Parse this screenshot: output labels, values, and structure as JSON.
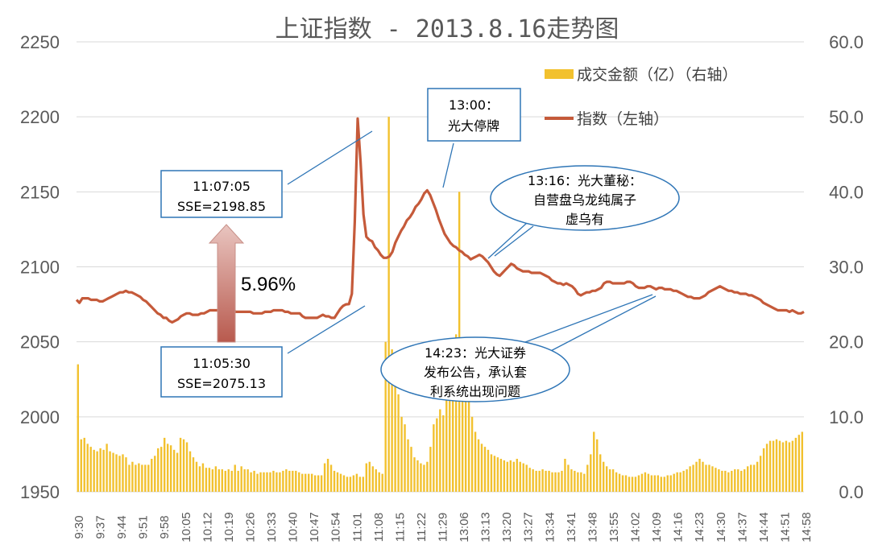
{
  "chart_data": {
    "type": "bar+line",
    "title": "上证指数 - 2013.8.16走势图",
    "y_left": {
      "ticks": [
        "2250",
        "2200",
        "2150",
        "2100",
        "2050",
        "2000",
        "1950"
      ],
      "range": [
        1950,
        2250
      ]
    },
    "y_right": {
      "ticks": [
        "60.0",
        "50.0",
        "40.0",
        "30.0",
        "20.0",
        "10.0",
        "0.0"
      ],
      "range": [
        0,
        60
      ]
    },
    "x_tick_labels": [
      "9:30",
      "9:37",
      "9:44",
      "9:51",
      "9:58",
      "10:05",
      "10:12",
      "10:19",
      "10:26",
      "10:33",
      "10:40",
      "10:47",
      "10:54",
      "11:01",
      "11:08",
      "11:15",
      "11:22",
      "11:29",
      "13:06",
      "13:13",
      "13:20",
      "13:27",
      "13:34",
      "13:41",
      "13:48",
      "13:55",
      "14:02",
      "14:09",
      "14:16",
      "14:23",
      "14:30",
      "14:37",
      "14:44",
      "14:51",
      "14:58"
    ],
    "series": [
      {
        "name": "成交金额（亿）（右轴）",
        "type": "bar",
        "axis": "right",
        "color": "#F2C12E",
        "values": [
          17.0,
          7.0,
          7.2,
          6.4,
          6.0,
          5.6,
          5.4,
          5.8,
          5.6,
          6.4,
          5.4,
          5.2,
          5.0,
          4.8,
          5.0,
          4.6,
          3.6,
          4.0,
          3.6,
          3.8,
          3.6,
          3.6,
          3.6,
          4.4,
          4.8,
          5.8,
          6.0,
          7.2,
          6.4,
          6.2,
          5.6,
          5.2,
          7.2,
          7.0,
          6.6,
          5.4,
          4.6,
          4.0,
          3.4,
          3.8,
          3.2,
          3.2,
          3.0,
          3.4,
          3.0,
          3.0,
          2.8,
          3.0,
          2.8,
          3.6,
          2.8,
          3.4,
          3.0,
          3.0,
          2.6,
          2.8,
          2.4,
          2.6,
          2.6,
          2.6,
          2.6,
          2.8,
          2.6,
          2.6,
          2.8,
          3.0,
          2.8,
          2.8,
          2.8,
          2.6,
          2.4,
          2.4,
          2.4,
          2.4,
          2.2,
          2.2,
          2.2,
          3.8,
          4.4,
          3.6,
          2.8,
          2.6,
          2.4,
          2.2,
          2.0,
          2.0,
          2.2,
          2.4,
          2.0,
          2.0,
          3.8,
          4.0,
          3.4,
          3.0,
          2.6,
          2.4,
          20.0,
          50.0,
          19.0,
          15.0,
          13.0,
          10.0,
          9.0,
          7.0,
          6.0,
          4.6,
          4.2,
          3.8,
          3.6,
          4.0,
          6.0,
          9.0,
          9.8,
          11.0,
          10.2,
          13.0,
          14.0,
          18.0,
          21.0,
          40.0,
          16.0,
          14.0,
          13.0,
          10.0,
          8.0,
          7.0,
          6.4,
          6.0,
          5.6,
          5.0,
          4.8,
          4.6,
          4.4,
          4.2,
          4.0,
          4.2,
          4.0,
          4.4,
          4.0,
          3.8,
          3.6,
          3.2,
          3.0,
          2.8,
          2.8,
          3.0,
          2.8,
          2.8,
          2.6,
          2.6,
          2.6,
          2.8,
          4.4,
          3.6,
          3.0,
          2.8,
          2.6,
          2.6,
          2.4,
          3.6,
          5.0,
          8.0,
          7.0,
          5.0,
          4.0,
          3.4,
          3.0,
          3.0,
          2.6,
          2.4,
          2.2,
          2.2,
          2.0,
          2.0,
          2.0,
          2.2,
          2.4,
          2.6,
          2.4,
          2.2,
          2.2,
          2.2,
          2.0,
          2.0,
          2.2,
          2.2,
          2.4,
          2.6,
          2.6,
          2.8,
          3.0,
          3.4,
          3.6,
          4.0,
          4.4,
          4.0,
          3.6,
          3.6,
          3.4,
          3.2,
          3.0,
          2.8,
          2.8,
          2.6,
          2.8,
          3.0,
          3.0,
          2.8,
          3.0,
          3.4,
          3.6,
          3.6,
          4.0,
          4.8,
          5.8,
          6.4,
          6.8,
          6.8,
          7.0,
          6.8,
          6.6,
          6.8,
          6.6,
          6.8,
          7.2,
          7.6,
          8.0
        ]
      },
      {
        "name": "指数（左轴）",
        "type": "line",
        "axis": "left",
        "color": "#C55A3A",
        "values": [
          2078.0,
          2076.0,
          2079.0,
          2079.0,
          2079.0,
          2078.0,
          2078.0,
          2078.0,
          2077.0,
          2077.0,
          2078.0,
          2079.0,
          2080.0,
          2081.0,
          2082.0,
          2083.0,
          2083.0,
          2084.0,
          2083.0,
          2083.0,
          2082.0,
          2081.0,
          2080.0,
          2078.0,
          2077.0,
          2075.0,
          2073.0,
          2071.0,
          2069.0,
          2068.0,
          2066.0,
          2066.0,
          2064.0,
          2063.0,
          2064.0,
          2065.0,
          2067.0,
          2068.0,
          2069.0,
          2069.0,
          2068.0,
          2068.0,
          2068.0,
          2069.0,
          2069.0,
          2070.0,
          2071.0,
          2071.0,
          2071.0,
          2071.0,
          2072.0,
          2072.0,
          2071.0,
          2071.0,
          2071.0,
          2070.0,
          2070.0,
          2070.0,
          2070.0,
          2070.0,
          2070.0,
          2069.0,
          2069.0,
          2069.0,
          2069.0,
          2070.0,
          2070.0,
          2070.0,
          2071.0,
          2071.0,
          2071.0,
          2071.0,
          2070.0,
          2070.0,
          2069.0,
          2069.0,
          2069.0,
          2069.0,
          2067.0,
          2066.0,
          2066.0,
          2066.0,
          2066.0,
          2066.0,
          2067.0,
          2068.0,
          2067.0,
          2067.0,
          2066.0,
          2066.0,
          2069.0,
          2072.0,
          2074.0,
          2075.0,
          2075.13,
          2082.0,
          2130.0,
          2198.85,
          2170.0,
          2135.0,
          2120.0,
          2118.0,
          2117.0,
          2113.0,
          2111.0,
          2108.0,
          2106.0,
          2106.0,
          2107.0,
          2110.0,
          2116.0,
          2120.0,
          2124.0,
          2127.0,
          2131.0,
          2133.0,
          2136.0,
          2140.0,
          2142.0,
          2145.0,
          2149.0,
          2151.0,
          2148.0,
          2143.0,
          2138.0,
          2132.0,
          2127.0,
          2122.0,
          2119.0,
          2116.0,
          2114.0,
          2113.0,
          2111.0,
          2110.0,
          2108.0,
          2107.0,
          2105.0,
          2106.0,
          2107.0,
          2108.0,
          2107.0,
          2105.0,
          2103.0,
          2100.0,
          2097.0,
          2095.0,
          2094.0,
          2096.0,
          2098.0,
          2100.0,
          2102.0,
          2101.0,
          2099.0,
          2098.0,
          2097.0,
          2097.0,
          2097.0,
          2096.0,
          2096.0,
          2096.0,
          2096.0,
          2095.0,
          2094.0,
          2093.0,
          2091.0,
          2090.0,
          2089.0,
          2089.0,
          2088.0,
          2089.0,
          2088.0,
          2087.0,
          2085.0,
          2082.0,
          2081.0,
          2082.0,
          2083.0,
          2083.0,
          2084.0,
          2084.0,
          2085.0,
          2086.0,
          2089.0,
          2090.0,
          2090.0,
          2089.0,
          2089.0,
          2089.0,
          2089.0,
          2089.0,
          2090.0,
          2090.0,
          2089.0,
          2087.0,
          2086.0,
          2086.0,
          2086.0,
          2087.0,
          2087.0,
          2086.0,
          2085.0,
          2086.0,
          2086.0,
          2085.0,
          2085.0,
          2085.0,
          2084.0,
          2084.0,
          2083.0,
          2082.0,
          2081.0,
          2080.0,
          2080.0,
          2079.0,
          2079.0,
          2079.0,
          2080.0,
          2081.0,
          2083.0,
          2084.0,
          2085.0,
          2086.0,
          2087.0,
          2086.0,
          2085.0,
          2084.0,
          2084.0,
          2083.0,
          2083.0,
          2082.0,
          2082.0,
          2082.0,
          2081.0,
          2081.0,
          2080.0,
          2079.0,
          2078.0,
          2076.0,
          2075.0,
          2074.0,
          2073.0,
          2072.0,
          2071.0,
          2071.0,
          2071.0,
          2071.0,
          2070.0,
          2071.0,
          2070.0,
          2069.0,
          2069.0,
          2070.0
        ]
      }
    ],
    "annotations": {
      "box_1105": [
        "11:05:30",
        "SSE=2075.13"
      ],
      "box_1107": [
        "11:07:05",
        "SSE=2198.85"
      ],
      "box_1300": [
        "13:00：",
        "光大停牌"
      ],
      "ellipse_1316": [
        "13:16：光大董秘：",
        "自营盘乌龙纯属子",
        "虚乌有"
      ],
      "ellipse_1423": [
        "14:23：光大证券",
        "发布公告，承认套",
        "利系统出现问题"
      ],
      "arrow_label": "5.96%"
    },
    "grid": "horizontal",
    "legend_position": "top-right"
  }
}
